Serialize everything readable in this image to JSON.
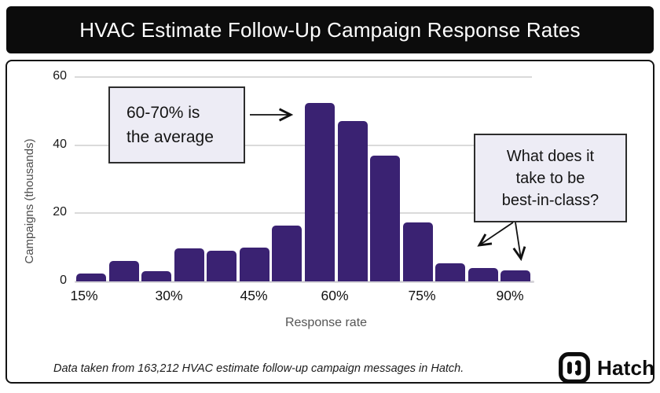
{
  "header": {
    "title": "HVAC Estimate Follow-Up Campaign Response Rates"
  },
  "chart_data": {
    "type": "bar",
    "title": "HVAC Estimate Follow-Up Campaign Response Rates",
    "xlabel": "Response rate",
    "ylabel": "Campaigns (thousands)",
    "x_tick_labels": [
      "15%",
      "30%",
      "45%",
      "60%",
      "75%",
      "90%"
    ],
    "y_ticks": [
      0,
      20,
      40,
      60
    ],
    "ylim": [
      0,
      62
    ],
    "grid": "horizontal",
    "bin_width_percent": 6,
    "bin_centers_percent": [
      15,
      21,
      27,
      33,
      39,
      45,
      51,
      57,
      63,
      69,
      75,
      81,
      87,
      93
    ],
    "values_thousands": [
      2.3,
      6,
      3,
      9.7,
      9,
      10,
      16.5,
      52.5,
      47,
      37,
      17.3,
      5.3,
      3.9,
      3.2
    ],
    "bar_color": "#3a2272",
    "annotations": [
      {
        "text": "60-70% is the average",
        "points_to": "tallest bar (57-63% bins)"
      },
      {
        "text": "What does it take to be best-in-class?",
        "points_to": "right-tail bars near 87-93%"
      }
    ]
  },
  "callouts": {
    "average": {
      "line1": "60-70% is",
      "line2": "the average"
    },
    "best_in_class": {
      "line1": "What does it",
      "line2": "take to be",
      "line3": "best-in-class?"
    }
  },
  "footer": {
    "note": "Data taken from 163,212 HVAC estimate follow-up campaign messages in Hatch.",
    "brand": "Hatch"
  },
  "colors": {
    "bar": "#3a2272",
    "header_bg": "#0c0c0c",
    "callout_bg": "#edecf5",
    "gridline": "#dadada"
  }
}
